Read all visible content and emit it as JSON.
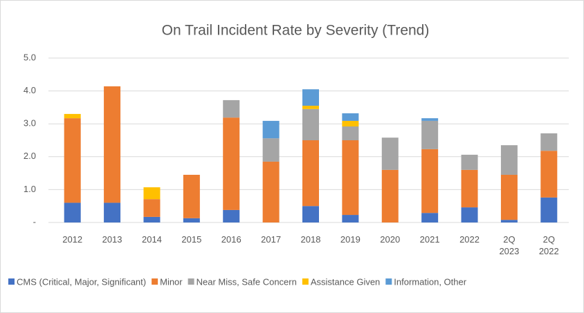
{
  "chart_data": {
    "type": "stacked_bar",
    "title": "On Trail Incident Rate by Severity (Trend)",
    "categories": [
      "2012",
      "2013",
      "2014",
      "2015",
      "2016",
      "2017",
      "2018",
      "2019",
      "2020",
      "2021",
      "2022",
      "2Q 2023",
      "2Q 2022"
    ],
    "series": [
      {
        "name": "CMS (Critical, Major, Significant)",
        "color": "#4472c4",
        "values": [
          0.6,
          0.6,
          0.17,
          0.13,
          0.38,
          0,
          0.5,
          0.23,
          0,
          0.29,
          0.46,
          0.08,
          0.76
        ]
      },
      {
        "name": "Minor",
        "color": "#ed7d31",
        "values": [
          2.57,
          3.54,
          0.54,
          1.32,
          2.81,
          1.85,
          2.0,
          2.27,
          1.6,
          1.94,
          1.14,
          1.37,
          1.42
        ]
      },
      {
        "name": "Near Miss, Safe Concern",
        "color": "#a5a5a5",
        "values": [
          0,
          0,
          0,
          0,
          0.53,
          0.71,
          0.95,
          0.42,
          0.98,
          0.86,
          0.46,
          0.9,
          0.53
        ]
      },
      {
        "name": "Assistance Given",
        "color": "#ffc000",
        "values": [
          0.13,
          0,
          0.36,
          0,
          0,
          0,
          0.1,
          0.17,
          0,
          0,
          0,
          0,
          0
        ]
      },
      {
        "name": "Information, Other",
        "color": "#5b9bd5",
        "values": [
          0,
          0,
          0,
          0,
          0,
          0.53,
          0.5,
          0.23,
          0,
          0.08,
          0,
          0,
          0
        ]
      }
    ],
    "ylim": [
      0,
      5
    ],
    "yticks": [
      {
        "value": 0,
        "label": "-"
      },
      {
        "value": 1,
        "label": "1.0"
      },
      {
        "value": 2,
        "label": "2.0"
      },
      {
        "value": 3,
        "label": "3.0"
      },
      {
        "value": 4,
        "label": "4.0"
      },
      {
        "value": 5,
        "label": "5.0"
      }
    ],
    "grid": true,
    "legend": "bottom"
  }
}
